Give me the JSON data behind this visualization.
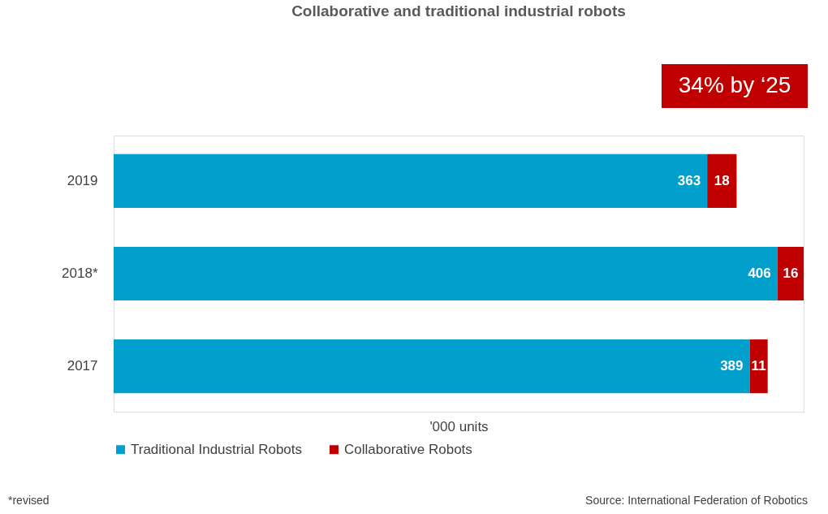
{
  "chart_data": {
    "type": "bar",
    "orientation": "horizontal",
    "stacked": true,
    "title": "Collaborative and traditional industrial robots",
    "xlabel": "'000 units",
    "categories": [
      "2019",
      "2018*",
      "2017"
    ],
    "series": [
      {
        "name": "Traditional Industrial Robots",
        "color": "#009fcc",
        "values": [
          363,
          406,
          389
        ]
      },
      {
        "name": "Collaborative Robots",
        "color": "#c00000",
        "values": [
          18,
          16,
          11
        ]
      }
    ],
    "data_labels": true,
    "legend": "bottom",
    "grid": false,
    "annotations": [
      "34% by ‘25",
      "*revised",
      "Source: International Federation of Robotics"
    ]
  }
}
